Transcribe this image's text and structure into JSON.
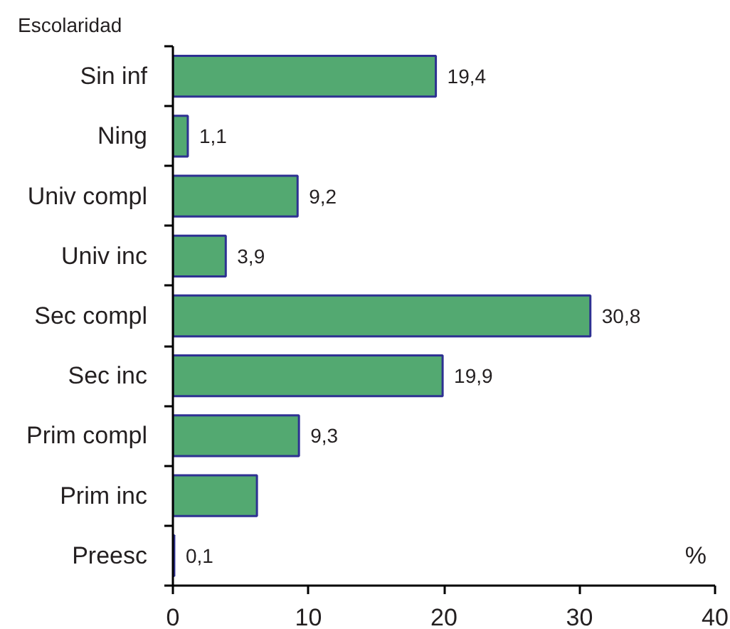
{
  "chart_data": {
    "type": "bar",
    "orientation": "horizontal",
    "ylabel": "Escolaridad",
    "xlabel": "%",
    "categories": [
      "Sin inf",
      "Ning",
      "Univ compl",
      "Univ inc",
      "Sec compl",
      "Sec inc",
      "Prim compl",
      "Prim inc",
      "Preesc"
    ],
    "values": [
      19.4,
      1.1,
      9.2,
      3.9,
      30.8,
      19.9,
      9.3,
      6.2,
      0.1
    ],
    "value_labels": [
      "19,4",
      "1,1",
      "9,2",
      "3,9",
      "30,8",
      "19,9",
      "9,3",
      null,
      "0,1"
    ],
    "color": "#53a971",
    "xlim": [
      0,
      40
    ],
    "xticks": [
      0,
      10,
      20,
      30,
      40
    ]
  }
}
